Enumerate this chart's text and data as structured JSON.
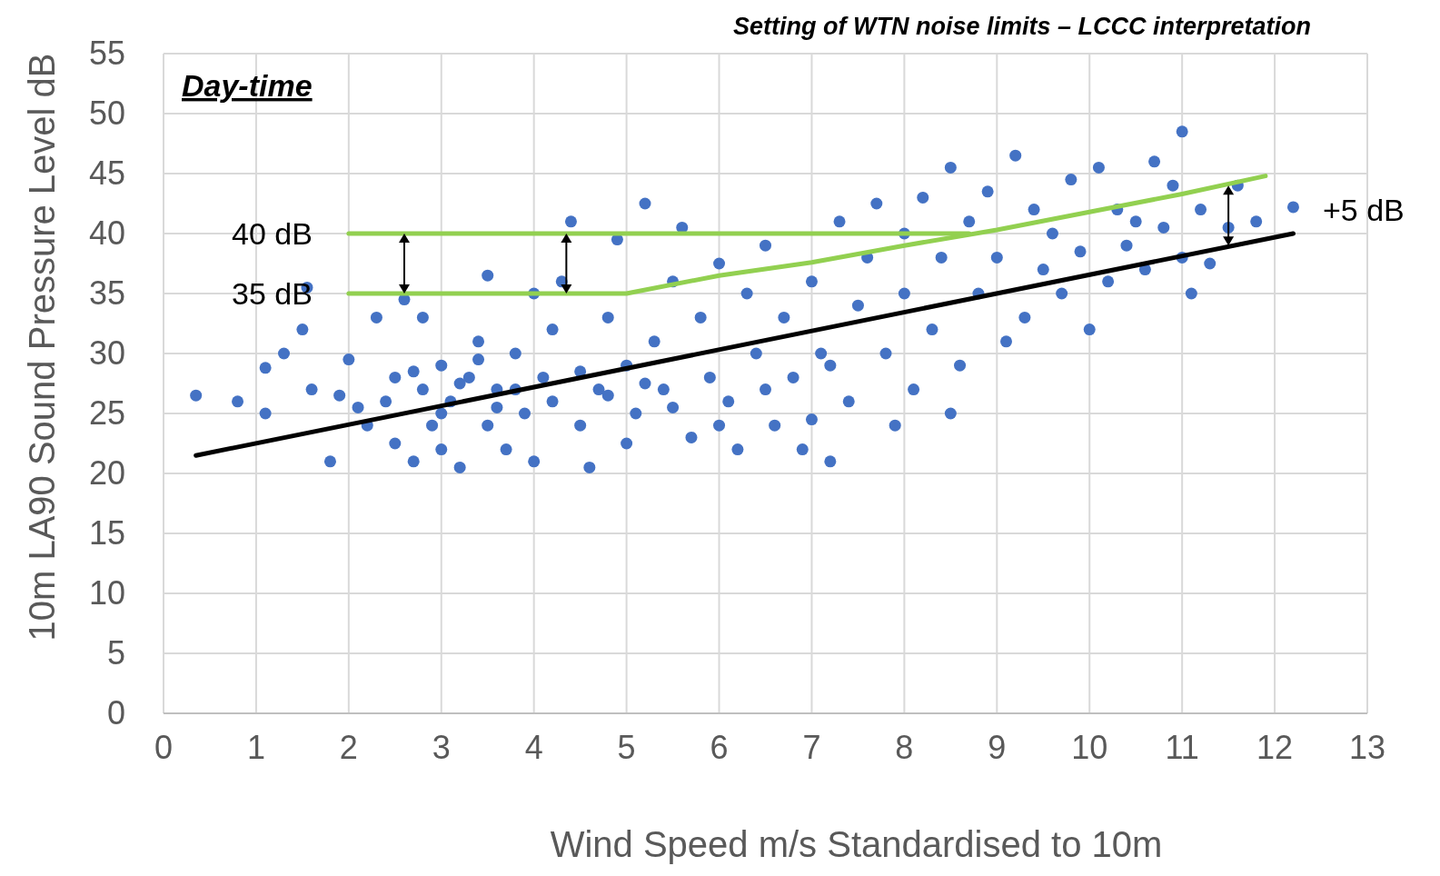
{
  "chart_data": {
    "type": "scatter",
    "title": "Setting of WTN noise limits – LCCC interpretation",
    "xlabel": "Wind Speed m/s Standardised to 10m",
    "ylabel": "10m LA90 Sound Pressure Level dB",
    "xlim": [
      0,
      13
    ],
    "xticks": [
      0,
      1,
      2,
      3,
      4,
      5,
      6,
      7,
      8,
      9,
      10,
      11,
      12,
      13
    ],
    "ylim": [
      0,
      55
    ],
    "yticks": [
      0,
      5,
      10,
      15,
      20,
      25,
      30,
      35,
      40,
      45,
      50,
      55
    ],
    "grid": true,
    "annotations": [
      "Day-time",
      {
        "text": "40 dB",
        "x": 2,
        "y": 40
      },
      {
        "text": "35 dB",
        "x": 2,
        "y": 35
      },
      "+5 dB"
    ],
    "series": [
      {
        "marker": "circle",
        "color": "#4472c4",
        "x": [
          0.35,
          0.8,
          1.1,
          1.1,
          1.3,
          1.5,
          1.55,
          1.6,
          1.8,
          1.9,
          2.0,
          2.1,
          2.2,
          2.3,
          2.5,
          2.5,
          2.6,
          2.7,
          2.8,
          2.8,
          2.9,
          3.0,
          3.0,
          3.1,
          3.2,
          3.3,
          3.4,
          3.5,
          3.5,
          3.6,
          3.7,
          3.8,
          3.9,
          4.0,
          4.0,
          4.1,
          4.2,
          4.3,
          4.4,
          4.5,
          4.6,
          4.7,
          4.8,
          4.9,
          5.0,
          5.0,
          5.1,
          5.2,
          5.3,
          5.4,
          5.5,
          5.6,
          5.7,
          5.8,
          5.9,
          6.0,
          6.1,
          6.2,
          6.3,
          6.4,
          6.5,
          6.6,
          6.7,
          6.8,
          6.9,
          7.0,
          7.1,
          7.2,
          7.3,
          7.4,
          7.5,
          7.6,
          7.7,
          7.8,
          7.9,
          8.0,
          8.0,
          8.1,
          8.2,
          8.3,
          8.4,
          8.5,
          8.5,
          8.6,
          8.7,
          8.8,
          8.9,
          9.0,
          9.1,
          9.2,
          9.3,
          9.4,
          9.5,
          9.6,
          9.7,
          9.8,
          9.9,
          10.0,
          10.1,
          10.2,
          10.3,
          10.4,
          10.5,
          10.6,
          10.7,
          10.8,
          10.9,
          11.0,
          11.0,
          11.1,
          11.2,
          11.3,
          11.5,
          11.6,
          11.8,
          12.2,
          2.4,
          2.7,
          3.0,
          3.2,
          3.4,
          3.6,
          3.8,
          4.2,
          4.5,
          4.8,
          5.2,
          5.5,
          6.0,
          6.5,
          7.0,
          7.2
        ],
        "values": [
          26.5,
          26,
          25,
          28.8,
          30,
          32,
          35.5,
          27,
          21,
          26.5,
          29.5,
          25.5,
          24,
          33,
          28,
          22.5,
          34.5,
          21,
          27,
          33,
          24,
          29,
          22,
          26,
          20.5,
          28,
          31,
          24,
          36.5,
          27,
          22,
          30,
          25,
          21,
          35,
          28,
          32,
          36,
          41,
          24,
          20.5,
          27,
          33,
          39.5,
          29,
          22.5,
          25,
          42.5,
          31,
          27,
          36,
          40.5,
          23,
          33,
          28,
          37.5,
          26,
          22,
          35,
          30,
          39,
          24,
          33,
          28,
          22,
          36,
          30,
          21,
          41,
          26,
          34,
          38,
          42.5,
          30,
          24,
          40,
          35,
          27,
          43,
          32,
          38,
          45.5,
          25,
          29,
          41,
          35,
          43.5,
          38,
          31,
          46.5,
          33,
          42,
          37,
          40,
          35,
          44.5,
          38.5,
          32,
          45.5,
          36,
          42,
          39,
          41,
          37,
          46,
          40.5,
          44,
          48.5,
          38,
          35,
          42,
          37.5,
          40.5,
          44,
          41,
          42.2,
          26,
          28.5,
          25,
          27.5,
          29.5,
          25.5,
          27,
          26,
          28.5,
          26.5,
          27.5,
          25.5,
          24,
          27,
          24.5,
          29
        ]
      },
      {
        "type": "line",
        "marker": "none",
        "color": "#000000",
        "x": [
          0.35,
          12.2
        ],
        "values": [
          21.5,
          40
        ]
      },
      {
        "type": "line",
        "marker": "none",
        "color": "#92d050",
        "x": [
          2,
          8.7
        ],
        "values": [
          40,
          40
        ]
      },
      {
        "type": "line",
        "marker": "none",
        "color": "#92d050",
        "x": [
          2,
          5,
          6,
          7,
          8,
          9,
          10,
          11,
          11.9
        ],
        "values": [
          35,
          35,
          36.5,
          37.6,
          39,
          40.3,
          41.8,
          43.3,
          44.8
        ]
      }
    ]
  }
}
